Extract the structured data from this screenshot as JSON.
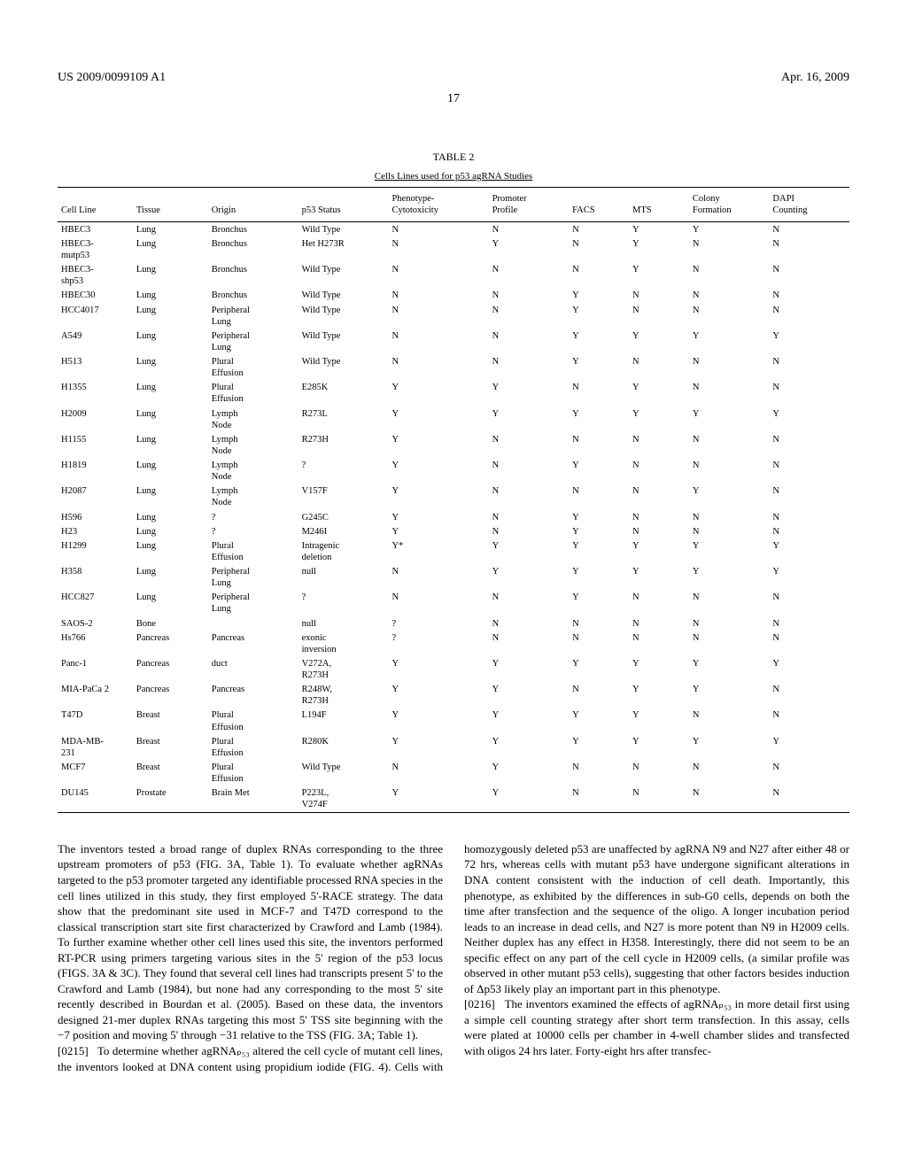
{
  "header": {
    "pub_number": "US 2009/0099109 A1",
    "date": "Apr. 16, 2009",
    "page": "17"
  },
  "table": {
    "label": "TABLE 2",
    "caption": "Cells Lines used for p53 agRNA Studies",
    "columns": [
      "Cell Line",
      "Tissue",
      "Origin",
      "p53 Status",
      "Phenotype-\nCytotoxicity",
      "Promoter\nProfile",
      "FACS",
      "MTS",
      "Colony\nFormation",
      "DAPI\nCounting"
    ],
    "rows": [
      [
        "HBEC3",
        "Lung",
        "Bronchus",
        "Wild Type",
        "N",
        "N",
        "N",
        "Y",
        "Y",
        "N"
      ],
      [
        "HBEC3-\nmutp53",
        "Lung",
        "Bronchus",
        "Het H273R",
        "N",
        "Y",
        "N",
        "Y",
        "N",
        "N"
      ],
      [
        "HBEC3-\nshp53",
        "Lung",
        "Bronchus",
        "Wild Type",
        "N",
        "N",
        "N",
        "Y",
        "N",
        "N"
      ],
      [
        "HBEC30",
        "Lung",
        "Bronchus",
        "Wild Type",
        "N",
        "N",
        "Y",
        "N",
        "N",
        "N"
      ],
      [
        "HCC4017",
        "Lung",
        "Peripheral\nLung",
        "Wild Type",
        "N",
        "N",
        "Y",
        "N",
        "N",
        "N"
      ],
      [
        "A549",
        "Lung",
        "Peripheral\nLung",
        "Wild Type",
        "N",
        "N",
        "Y",
        "Y",
        "Y",
        "Y"
      ],
      [
        "H513",
        "Lung",
        "Plural\nEffusion",
        "Wild Type",
        "N",
        "N",
        "Y",
        "N",
        "N",
        "N"
      ],
      [
        "H1355",
        "Lung",
        "Plural\nEffusion",
        "E285K",
        "Y",
        "Y",
        "N",
        "Y",
        "N",
        "N"
      ],
      [
        "H2009",
        "Lung",
        "Lymph\nNode",
        "R273L",
        "Y",
        "Y",
        "Y",
        "Y",
        "Y",
        "Y"
      ],
      [
        "H1155",
        "Lung",
        "Lymph\nNode",
        "R273H",
        "Y",
        "N",
        "N",
        "N",
        "N",
        "N"
      ],
      [
        "H1819",
        "Lung",
        "Lymph\nNode",
        "?",
        "Y",
        "N",
        "Y",
        "N",
        "N",
        "N"
      ],
      [
        "H2087",
        "Lung",
        "Lymph\nNode",
        "V157F",
        "Y",
        "N",
        "N",
        "N",
        "Y",
        "N"
      ],
      [
        "H596",
        "Lung",
        "?",
        "G245C",
        "Y",
        "N",
        "Y",
        "N",
        "N",
        "N"
      ],
      [
        "H23",
        "Lung",
        "?",
        "M246I",
        "Y",
        "N",
        "Y",
        "N",
        "N",
        "N"
      ],
      [
        "H1299",
        "Lung",
        "Plural\nEffusion",
        "Intragenic\ndeletion",
        "Y*",
        "Y",
        "Y",
        "Y",
        "Y",
        "Y"
      ],
      [
        "H358",
        "Lung",
        "Peripheral\nLung",
        "null",
        "N",
        "Y",
        "Y",
        "Y",
        "Y",
        "Y"
      ],
      [
        "HCC827",
        "Lung",
        "Peripheral\nLung",
        "?",
        "N",
        "N",
        "Y",
        "N",
        "N",
        "N"
      ],
      [
        "SAOS-2",
        "Bone",
        "",
        "null",
        "?",
        "N",
        "N",
        "N",
        "N",
        "N"
      ],
      [
        "Hs766",
        "Pancreas",
        "Pancreas",
        "exonic\ninversion",
        "?",
        "N",
        "N",
        "N",
        "N",
        "N"
      ],
      [
        "Panc-1",
        "Pancreas",
        "duct",
        "V272A,\nR273H",
        "Y",
        "Y",
        "Y",
        "Y",
        "Y",
        "Y"
      ],
      [
        "MIA-PaCa 2",
        "Pancreas",
        "Pancreas",
        "R248W,\nR273H",
        "Y",
        "Y",
        "N",
        "Y",
        "Y",
        "N"
      ],
      [
        "T47D",
        "Breast",
        "Plural\nEffusion",
        "L194F",
        "Y",
        "Y",
        "Y",
        "Y",
        "N",
        "N"
      ],
      [
        "MDA-MB-\n231",
        "Breast",
        "Plural\nEffusion",
        "R280K",
        "Y",
        "Y",
        "Y",
        "Y",
        "Y",
        "Y"
      ],
      [
        "MCF7",
        "Breast",
        "Plural\nEffusion",
        "Wild Type",
        "N",
        "Y",
        "N",
        "N",
        "N",
        "N"
      ],
      [
        "DU145",
        "Prostate",
        "Brain Met",
        "P223L,\nV274F",
        "Y",
        "Y",
        "N",
        "N",
        "N",
        "N"
      ]
    ]
  },
  "body": {
    "p1": "The inventors tested a broad range of duplex RNAs corresponding to the three upstream promoters of p53 (FIG. 3A, Table 1). To evaluate whether agRNAs targeted to the p53 promoter targeted any identifiable processed RNA species in the cell lines utilized in this study, they first employed 5'-RACE strategy. The data show that the predominant site used in MCF-7 and T47D correspond to the classical transcription start site first characterized by Crawford and Lamb (1984). To further examine whether other cell lines used this site, the inventors performed RT-PCR using primers targeting various sites in the 5' region of the p53 locus (FIGS. 3A & 3C). They found that several cell lines had transcripts present 5' to the Crawford and Lamb (1984), but none had any corresponding to the most 5' site recently described in Bourdan et al. (2005). Based on these data, the inventors designed 21-mer duplex RNAs targeting this most 5' TSS site beginning with the −7 position and moving 5' through −31 relative to the TSS (FIG. 3A; Table 1).",
    "p2_num": "[0215]",
    "p2": "To determine whether agRNAₚ₅₃ altered the cell cycle of mutant cell lines, the inventors looked at DNA content using propidium iodide (FIG. 4). Cells with homozygously deleted p53 are unaffected by agRNA N9 and N27 after either 48 or 72 hrs, whereas cells with mutant p53 have undergone significant alterations in DNA content consistent with the induction of cell death. Importantly, this phenotype, as exhibited by the differences in sub-G0 cells, depends on both the time after transfection and the sequence of the oligo. A longer incubation period leads to an increase in dead cells, and N27 is more potent than N9 in H2009 cells. Neither duplex has any effect in H358. Interestingly, there did not seem to be an specific effect on any part of the cell cycle in H2009 cells, (a similar profile was observed in other mutant p53 cells), suggesting that other factors besides induction of Δp53 likely play an important part in this phenotype.",
    "p3_num": "[0216]",
    "p3": "The inventors examined the effects of agRNAₚ₅₃ in more detail first using a simple cell counting strategy after short term transfection. In this assay, cells were plated at 10000 cells per chamber in 4-well chamber slides and transfected with oligos 24 hrs later. Forty-eight hrs after transfec-"
  }
}
